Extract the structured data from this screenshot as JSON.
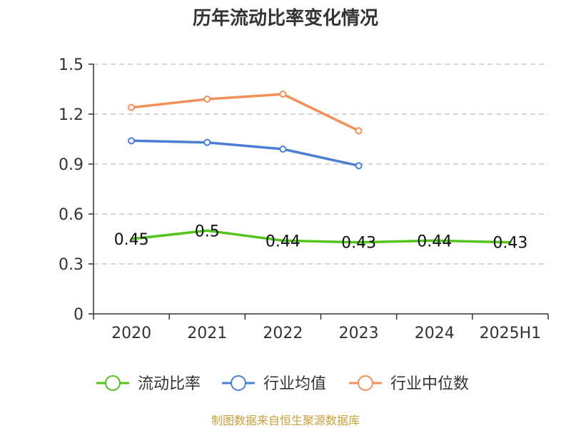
{
  "chart_data": {
    "type": "line",
    "title": "历年流动比率变化情况",
    "categories": [
      "2020",
      "2021",
      "2022",
      "2023",
      "2024",
      "2025H1"
    ],
    "ylim": [
      0,
      1.5
    ],
    "yticks": [
      "0",
      "0.3",
      "0.6",
      "0.9",
      "1.2",
      "1.5"
    ],
    "ytick_values": [
      0,
      0.3,
      0.6,
      0.9,
      1.2,
      1.5
    ],
    "grid": true,
    "legend_position": "bottom",
    "series": [
      {
        "name": "流动比率",
        "color": "#52c41a",
        "values": [
          0.45,
          0.5,
          0.44,
          0.43,
          0.44,
          0.43
        ],
        "labels": [
          "0.45",
          "0.5",
          "0.44",
          "0.43",
          "0.44",
          "0.43"
        ],
        "show_markers": false
      },
      {
        "name": "行业均值",
        "color": "#4a7fd4",
        "values": [
          1.04,
          1.03,
          0.99,
          0.89,
          null,
          null
        ],
        "show_markers": true
      },
      {
        "name": "行业中位数",
        "color": "#f48f5a",
        "values": [
          1.24,
          1.29,
          1.32,
          1.1,
          null,
          null
        ],
        "show_markers": true
      }
    ],
    "source": "制图数据来自恒生聚源数据库"
  }
}
